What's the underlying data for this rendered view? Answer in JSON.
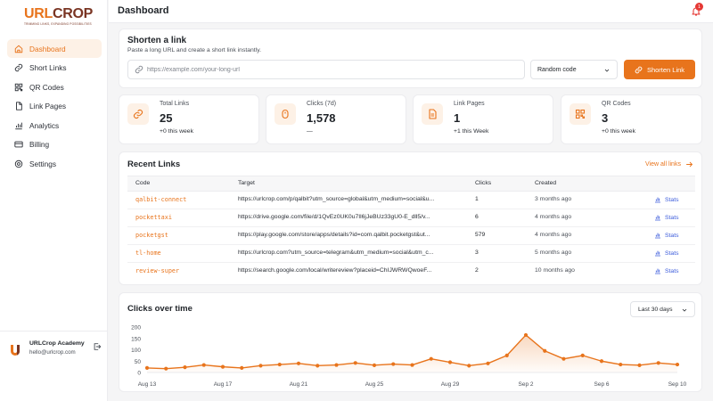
{
  "brand": {
    "logo_url": "URL",
    "logo_crop": "CROP",
    "tagline": "TRIMMING LINKS, EXPANDING POSSIBILITIES"
  },
  "sidebar": {
    "items": [
      {
        "label": "Dashboard",
        "icon": "home-icon",
        "active": true
      },
      {
        "label": "Short Links",
        "icon": "link-icon"
      },
      {
        "label": "QR Codes",
        "icon": "qr-icon"
      },
      {
        "label": "Link Pages",
        "icon": "file-icon"
      },
      {
        "label": "Analytics",
        "icon": "chart-icon"
      },
      {
        "label": "Billing",
        "icon": "card-icon"
      },
      {
        "label": "Settings",
        "icon": "gear-icon"
      }
    ]
  },
  "user": {
    "name": "URLCrop Academy",
    "email": "hello@urlcrop.com"
  },
  "header": {
    "title": "Dashboard",
    "notification_count": "1"
  },
  "shorten": {
    "title": "Shorten a link",
    "subtitle": "Paste a long URL and create a short link instantly.",
    "placeholder": "https://example.com/your-long-url",
    "code_mode": "Random code",
    "button_label": "Shorten Link"
  },
  "stats": [
    {
      "label": "Total Links",
      "value": "25",
      "delta": "+0 this week"
    },
    {
      "label": "Clicks (7d)",
      "value": "1,578",
      "delta": "—"
    },
    {
      "label": "Link Pages",
      "value": "1",
      "delta": "+1 this Week"
    },
    {
      "label": "QR Codes",
      "value": "3",
      "delta": "+0 this week"
    }
  ],
  "recent": {
    "title": "Recent Links",
    "view_all": "View all links",
    "columns": {
      "code": "Code",
      "target": "Target",
      "clicks": "Clicks",
      "created": "Created"
    },
    "stats_label": "Stats",
    "rows": [
      {
        "code": "qalbit-connect",
        "target": "https://urlcrop.com/p/qalbit?utm_source=global&utm_medium=social&u...",
        "clicks": "1",
        "created": "3 months ago"
      },
      {
        "code": "pockettaxi",
        "target": "https://drive.google.com/file/d/1QvEz0UK0u7Il6jJeBUz33gU0-E_dll5/v...",
        "clicks": "6",
        "created": "4 months ago"
      },
      {
        "code": "pocketgst",
        "target": "https://play.google.com/store/apps/details?id=com.qalbit.pocketgst&ut...",
        "clicks": "579",
        "created": "4 months ago"
      },
      {
        "code": "tl-home",
        "target": "https://urlcrop.com?utm_source=telegram&utm_medium=social&utm_c...",
        "clicks": "3",
        "created": "5 months ago"
      },
      {
        "code": "review-super",
        "target": "https://search.google.com/local/writereview?placeid=ChIJWRWQwoeF...",
        "clicks": "2",
        "created": "10 months ago"
      }
    ]
  },
  "clicks_chart": {
    "title": "Clicks over time",
    "range": "Last 30 days"
  },
  "colors": {
    "accent": "#e8741c",
    "link": "#3b5bdb"
  },
  "chart_data": {
    "type": "area",
    "title": "Clicks over time",
    "xlabel": "",
    "ylabel": "",
    "ylim": [
      0,
      200
    ],
    "yticks": [
      0,
      50,
      100,
      150,
      200
    ],
    "x": [
      "Aug 13",
      "Aug 14",
      "Aug 15",
      "Aug 16",
      "Aug 17",
      "Aug 18",
      "Aug 19",
      "Aug 20",
      "Aug 21",
      "Aug 22",
      "Aug 23",
      "Aug 24",
      "Aug 25",
      "Aug 26",
      "Aug 27",
      "Aug 28",
      "Aug 29",
      "Aug 30",
      "Aug 31",
      "Sep 1",
      "Sep 2",
      "Sep 3",
      "Sep 4",
      "Sep 5",
      "Sep 6",
      "Sep 7",
      "Sep 8",
      "Sep 9",
      "Sep 10"
    ],
    "xtick_labels": [
      "Aug 13",
      "Aug 17",
      "Aug 21",
      "Aug 25",
      "Aug 29",
      "Sep 2",
      "Sep 6",
      "Sep 10"
    ],
    "series": [
      {
        "values": [
          20,
          17,
          23,
          33,
          25,
          20,
          30,
          35,
          40,
          30,
          33,
          42,
          32,
          37,
          33,
          60,
          45,
          30,
          40,
          75,
          165,
          95,
          60,
          75,
          50,
          35,
          32,
          42,
          35
        ]
      }
    ],
    "grid": false,
    "legend": "none"
  }
}
